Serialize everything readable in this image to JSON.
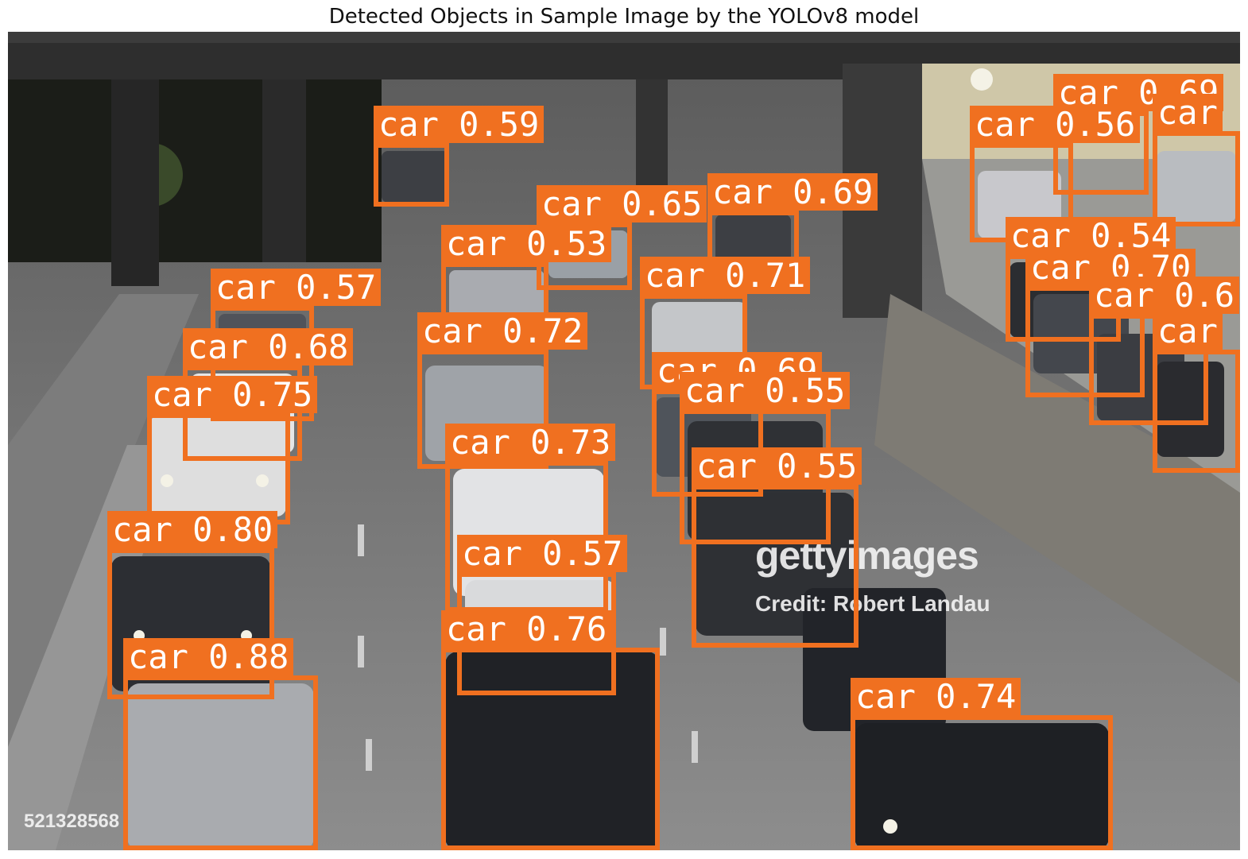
{
  "title": "Detected Objects in Sample Image by the YOLOv8 model",
  "image": {
    "description_icon": "highway-traffic-photo",
    "watermark_brand": "gettyimages",
    "watermark_credit": "Credit: Robert Landau",
    "watermark_id": "521328568"
  },
  "colors": {
    "box": "#f07020",
    "label_text": "#ffffff"
  },
  "detections": [
    {
      "label": "car",
      "score": "0.59"
    },
    {
      "label": "car",
      "score": "0.69"
    },
    {
      "label": "car",
      "score": "0.56"
    },
    {
      "label": "car",
      "score": ""
    },
    {
      "label": "car",
      "score": "0.65"
    },
    {
      "label": "car",
      "score": "0.69"
    },
    {
      "label": "car",
      "score": "0.53"
    },
    {
      "label": "car",
      "score": "0.54"
    },
    {
      "label": "car",
      "score": "0.70"
    },
    {
      "label": "car",
      "score": "0.6"
    },
    {
      "label": "car",
      "score": ""
    },
    {
      "label": "car",
      "score": "0.57"
    },
    {
      "label": "car",
      "score": "0.71"
    },
    {
      "label": "car",
      "score": "0.68"
    },
    {
      "label": "car",
      "score": "0.72"
    },
    {
      "label": "car",
      "score": "0.69"
    },
    {
      "label": "car",
      "score": "0.75"
    },
    {
      "label": "car",
      "score": "0.55"
    },
    {
      "label": "car",
      "score": "0.73"
    },
    {
      "label": "car",
      "score": "0.55"
    },
    {
      "label": "car",
      "score": "0.80"
    },
    {
      "label": "car",
      "score": "0.57"
    },
    {
      "label": "car",
      "score": "0.76"
    },
    {
      "label": "car",
      "score": "0.88"
    },
    {
      "label": "car",
      "score": "0.74"
    }
  ]
}
